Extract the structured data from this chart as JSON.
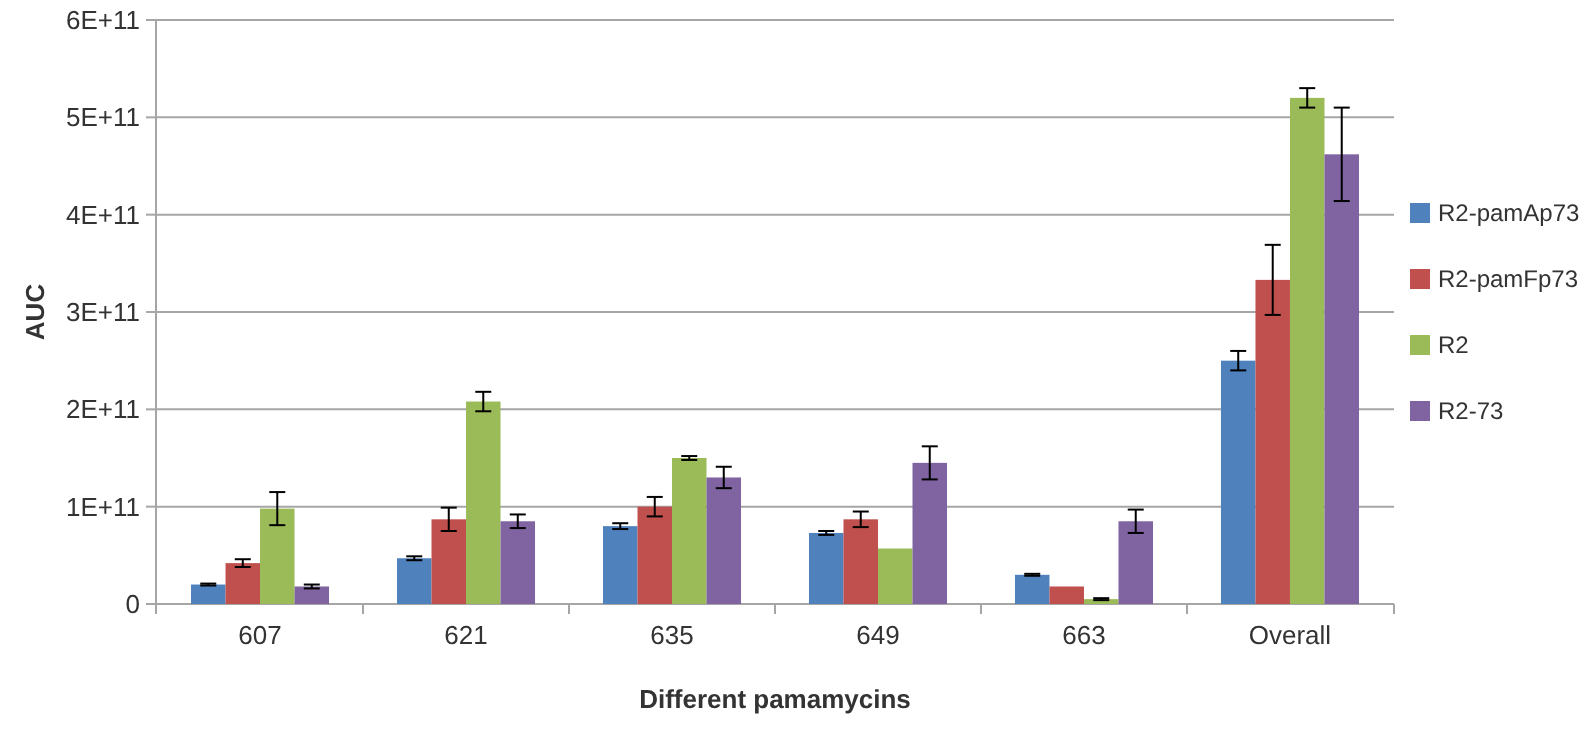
{
  "chart_data": {
    "type": "bar",
    "xlabel": "Different pamamycins",
    "ylabel": "AUC",
    "categories": [
      "607",
      "621",
      "635",
      "649",
      "663",
      "Overall"
    ],
    "ylim": [
      0,
      600000000000
    ],
    "yticks": [
      {
        "value": 0,
        "label": "0"
      },
      {
        "value": 100000000000,
        "label": "1E+11"
      },
      {
        "value": 200000000000,
        "label": "2E+11"
      },
      {
        "value": 300000000000,
        "label": "3E+11"
      },
      {
        "value": 400000000000,
        "label": "4E+11"
      },
      {
        "value": 500000000000,
        "label": "5E+11"
      },
      {
        "value": 600000000000,
        "label": "6E+11"
      }
    ],
    "grid": "y",
    "legend": "right",
    "series": [
      {
        "name": "R2-pamAp73",
        "color": "#4f81bd",
        "values": [
          20000000000,
          47000000000,
          80000000000,
          73000000000,
          30000000000,
          250000000000
        ],
        "errors": [
          1000000000,
          2000000000,
          3000000000,
          2000000000,
          1000000000,
          10000000000
        ]
      },
      {
        "name": "R2-pamFp73",
        "color": "#c0504d",
        "values": [
          42000000000,
          87000000000,
          100000000000,
          87000000000,
          18000000000,
          333000000000
        ],
        "errors": [
          4000000000,
          12000000000,
          10000000000,
          8000000000,
          null,
          36000000000
        ]
      },
      {
        "name": "R2",
        "color": "#9bbb59",
        "values": [
          98000000000,
          208000000000,
          150000000000,
          57000000000,
          5000000000,
          520000000000
        ],
        "errors": [
          17000000000,
          10000000000,
          2000000000,
          null,
          1000000000,
          10000000000
        ]
      },
      {
        "name": "R2-73",
        "color": "#8064a2",
        "values": [
          18000000000,
          85000000000,
          130000000000,
          145000000000,
          85000000000,
          462000000000
        ],
        "errors": [
          2000000000,
          7000000000,
          11000000000,
          17000000000,
          12000000000,
          48000000000
        ]
      }
    ]
  }
}
